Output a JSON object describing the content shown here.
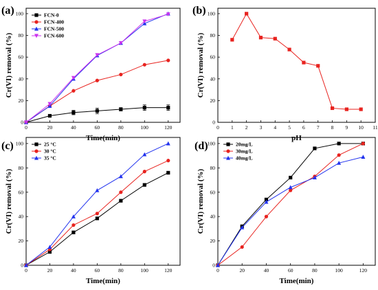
{
  "colors": {
    "black": "#000000",
    "red": "#e8231f",
    "blue": "#2233ee",
    "magenta": "#cc33ee"
  },
  "chart_data": [
    {
      "id": "a",
      "panel_label": "(a)",
      "type": "line",
      "xlabel": "Time(min)",
      "ylabel": "Cr(VI) removal (%)",
      "xlim": [
        0,
        130
      ],
      "ylim": [
        0,
        105
      ],
      "xticks": [
        0,
        20,
        40,
        60,
        80,
        100,
        120
      ],
      "yticks": [
        0,
        20,
        40,
        60,
        80,
        100
      ],
      "legend_position": "top-left",
      "series": [
        {
          "name": "FCN-0",
          "color": "#000000",
          "marker": "square",
          "x": [
            0,
            20,
            40,
            60,
            80,
            100,
            120
          ],
          "y": [
            0,
            6,
            9,
            10.5,
            12,
            13.5,
            13.5
          ],
          "err": [
            0,
            1,
            2,
            2.5,
            1.5,
            2.5,
            2.5
          ]
        },
        {
          "name": "FCN-400",
          "color": "#e8231f",
          "marker": "circle",
          "x": [
            0,
            20,
            40,
            60,
            80,
            100,
            120
          ],
          "y": [
            0,
            15,
            29,
            38.5,
            44,
            53,
            57
          ]
        },
        {
          "name": "FCN-500",
          "color": "#2233ee",
          "marker": "triangle-up",
          "x": [
            0,
            20,
            40,
            60,
            80,
            100,
            120
          ],
          "y": [
            0,
            15,
            40,
            61.5,
            73,
            91,
            100
          ]
        },
        {
          "name": "FCN-600",
          "color": "#cc33ee",
          "marker": "triangle-down",
          "x": [
            0,
            20,
            40,
            60,
            80,
            100,
            120
          ],
          "y": [
            0,
            17,
            41,
            62,
            73,
            93,
            99.5
          ]
        }
      ]
    },
    {
      "id": "b",
      "panel_label": "(b)",
      "type": "line",
      "xlabel": "pH",
      "ylabel": "Cr(VI) removal (%)",
      "xlim": [
        0,
        11
      ],
      "ylim": [
        0,
        105
      ],
      "xticks": [
        0,
        1,
        2,
        3,
        4,
        5,
        6,
        7,
        8,
        9,
        10,
        11
      ],
      "yticks": [
        0,
        20,
        40,
        60,
        80,
        100
      ],
      "series": [
        {
          "name": "",
          "color": "#e8231f",
          "marker": "square",
          "x": [
            1,
            2,
            3,
            4,
            5,
            6,
            7,
            8,
            9,
            10
          ],
          "y": [
            76,
            100,
            78,
            77,
            67,
            55,
            52,
            13,
            12,
            12
          ]
        }
      ]
    },
    {
      "id": "c",
      "panel_label": "(c)",
      "type": "line",
      "xlabel": "Time(min)",
      "ylabel": "Cr(VI) removal (%)",
      "xlim": [
        0,
        130
      ],
      "ylim": [
        0,
        105
      ],
      "xticks": [
        0,
        20,
        40,
        60,
        80,
        100,
        120
      ],
      "yticks": [
        0,
        20,
        40,
        60,
        80,
        100
      ],
      "legend_position": "top-left",
      "series": [
        {
          "name": "25 °C",
          "color": "#000000",
          "marker": "square",
          "x": [
            0,
            20,
            40,
            60,
            80,
            100,
            120
          ],
          "y": [
            0,
            11,
            27,
            38.5,
            53,
            66,
            76
          ]
        },
        {
          "name": "30 °C",
          "color": "#e8231f",
          "marker": "circle",
          "x": [
            0,
            20,
            40,
            60,
            80,
            100,
            120
          ],
          "y": [
            0,
            13,
            33,
            42.5,
            60,
            77,
            86
          ]
        },
        {
          "name": "35 °C",
          "color": "#2233ee",
          "marker": "triangle-up",
          "x": [
            0,
            20,
            40,
            60,
            80,
            100,
            120
          ],
          "y": [
            0,
            15,
            40,
            61.5,
            73,
            91,
            100
          ]
        }
      ]
    },
    {
      "id": "d",
      "panel_label": "(d)",
      "type": "line",
      "xlabel": "Time(min)",
      "ylabel": "Cr(VI) removal (%)",
      "xlim": [
        0,
        130
      ],
      "ylim": [
        0,
        105
      ],
      "xticks": [
        0,
        20,
        40,
        60,
        80,
        100,
        120
      ],
      "yticks": [
        0,
        20,
        40,
        60,
        80,
        100
      ],
      "legend_position": "top-left",
      "series": [
        {
          "name": "20mg/L",
          "color": "#000000",
          "marker": "square",
          "x": [
            0,
            20,
            40,
            60,
            80,
            100,
            120
          ],
          "y": [
            0,
            32,
            54,
            72,
            96,
            100,
            100
          ]
        },
        {
          "name": "30mg/L",
          "color": "#e8231f",
          "marker": "circle",
          "x": [
            0,
            20,
            40,
            60,
            80,
            100,
            120
          ],
          "y": [
            0,
            15,
            40,
            61.5,
            73,
            90.5,
            100
          ]
        },
        {
          "name": "40mg/L",
          "color": "#2233ee",
          "marker": "triangle-up",
          "x": [
            0,
            20,
            40,
            60,
            80,
            100,
            120
          ],
          "y": [
            0,
            31,
            52,
            64,
            72,
            84,
            89
          ]
        }
      ]
    }
  ]
}
